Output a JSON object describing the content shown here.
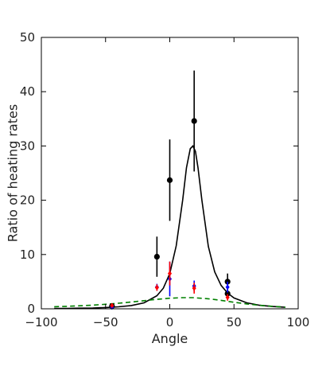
{
  "chart_data": {
    "type": "scatter",
    "xlabel": "Angle",
    "ylabel": "Ratio of heating rates",
    "xlim": [
      -100,
      100
    ],
    "ylim": [
      0,
      50
    ],
    "x_ticks": [
      -100,
      -50,
      0,
      50,
      100
    ],
    "x_tick_labels": [
      "−100",
      "−50",
      "0",
      "50",
      "100"
    ],
    "y_ticks": [
      0,
      10,
      20,
      30,
      40,
      50
    ],
    "y_tick_labels": [
      "0",
      "10",
      "20",
      "30",
      "40",
      "50"
    ],
    "grid": false,
    "legend": "none",
    "series": [
      {
        "kind": "points",
        "color": "#000000",
        "marker": "circle",
        "points": [
          {
            "x": -45,
            "y": 0.5,
            "err": 0.3
          },
          {
            "x": -10,
            "y": 9.6,
            "err": 3.7
          },
          {
            "x": 0,
            "y": 23.7,
            "err": 7.5
          },
          {
            "x": 19,
            "y": 34.6,
            "err": 9.3
          },
          {
            "x": 45,
            "y": 5.0,
            "err": 1.5
          },
          {
            "x": 45,
            "y": 2.8,
            "err": 0.8
          }
        ]
      },
      {
        "kind": "points",
        "color": "#0000ff",
        "marker": "diamond",
        "points": [
          {
            "x": -45,
            "y": 0.3,
            "err": 0.2
          },
          {
            "x": -10,
            "y": 4.0,
            "err": 0.6
          },
          {
            "x": 0,
            "y": 5.5,
            "err": 3.2
          },
          {
            "x": 19,
            "y": 4.2,
            "err": 1.0
          },
          {
            "x": 45,
            "y": 4.0,
            "err": 1.0
          }
        ]
      },
      {
        "kind": "points",
        "color": "#ff0000",
        "marker": "diamond",
        "points": [
          {
            "x": -45,
            "y": 0.6,
            "err": 0.3
          },
          {
            "x": -10,
            "y": 3.9,
            "err": 0.6
          },
          {
            "x": 0,
            "y": 6.5,
            "err": 2.2
          },
          {
            "x": 19,
            "y": 3.8,
            "err": 1.0
          },
          {
            "x": 45,
            "y": 2.1,
            "err": 0.6
          }
        ]
      },
      {
        "kind": "line",
        "color": "#000000",
        "style": "solid",
        "x": [
          -90,
          -80,
          -70,
          -60,
          -50,
          -40,
          -30,
          -20,
          -10,
          -5,
          0,
          5,
          10,
          13,
          16,
          18,
          20,
          22,
          25,
          30,
          35,
          40,
          45,
          50,
          60,
          70,
          80,
          90
        ],
        "y": [
          0.06,
          0.08,
          0.11,
          0.15,
          0.23,
          0.36,
          0.6,
          1.1,
          2.4,
          3.8,
          6.5,
          11.6,
          20.0,
          26.0,
          29.5,
          30.0,
          29.0,
          26.0,
          20.0,
          11.5,
          6.8,
          4.3,
          2.9,
          2.0,
          1.1,
          0.65,
          0.42,
          0.28
        ]
      },
      {
        "kind": "line",
        "color": "#008000",
        "style": "dashed",
        "x": [
          -90,
          -80,
          -70,
          -60,
          -50,
          -40,
          -30,
          -20,
          -10,
          0,
          10,
          18,
          30,
          40,
          50,
          60,
          70,
          80,
          90
        ],
        "y": [
          0.38,
          0.45,
          0.55,
          0.68,
          0.83,
          1.02,
          1.25,
          1.5,
          1.75,
          1.95,
          2.05,
          2.05,
          1.85,
          1.55,
          1.2,
          0.9,
          0.65,
          0.45,
          0.3
        ]
      }
    ]
  }
}
